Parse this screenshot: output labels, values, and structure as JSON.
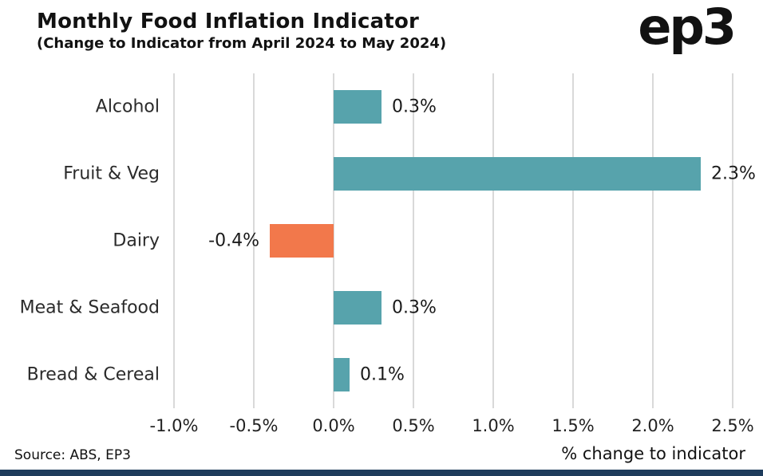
{
  "header": {
    "title": "Monthly Food Inflation Indicator",
    "subtitle": "(Change to Indicator from April 2024 to May 2024)",
    "logo": "ep3"
  },
  "chart_data": {
    "type": "bar",
    "orientation": "horizontal",
    "title": "Monthly Food Inflation Indicator",
    "subtitle": "(Change to Indicator from April 2024 to May 2024)",
    "categories": [
      "Alcohol",
      "Fruit & Veg",
      "Dairy",
      "Meat & Seafood",
      "Bread & Cereal"
    ],
    "values": [
      0.3,
      2.3,
      -0.4,
      0.3,
      0.1
    ],
    "value_labels": [
      "0.3%",
      "2.3%",
      "-0.4%",
      "0.3%",
      "0.1%"
    ],
    "x_ticks": [
      "-1.0%",
      "-0.5%",
      "0.0%",
      "0.5%",
      "1.0%",
      "1.5%",
      "2.0%",
      "2.5%"
    ],
    "x_tick_values": [
      -1.0,
      -0.5,
      0.0,
      0.5,
      1.0,
      1.5,
      2.0,
      2.5
    ],
    "xlim": [
      -1.0,
      2.5
    ],
    "xlabel": "% change to indicator",
    "grid": true,
    "legend": "none",
    "positive_color": "#57a3ac",
    "negative_color": "#f2784b",
    "gridline_color": "#d9d9d9"
  },
  "footer": {
    "source": "Source: ABS, EP3",
    "accent_strip_color": "#1e3c5c"
  }
}
